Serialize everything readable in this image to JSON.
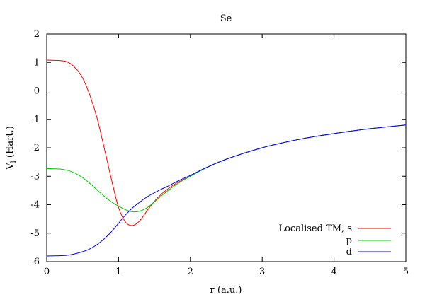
{
  "chart_data": {
    "type": "line",
    "title": "Se",
    "xlabel": "r (a.u.)",
    "ylabel_main": "V",
    "ylabel_sub": "l",
    "ylabel_rest": " (Hart.)",
    "xlim": [
      0,
      5
    ],
    "ylim": [
      -6,
      2
    ],
    "x_ticks": [
      0,
      1,
      2,
      3,
      4,
      5
    ],
    "y_ticks": [
      -6,
      -5,
      -4,
      -3,
      -2,
      -1,
      0,
      1,
      2
    ],
    "grid": false,
    "legend_position": "bottom-right",
    "series": [
      {
        "name": "Localised TM, s",
        "color": "#ff0000",
        "x": [
          0,
          0.2,
          0.3,
          0.4,
          0.5,
          0.6,
          0.7,
          0.8,
          0.9,
          1.0,
          1.1,
          1.2,
          1.3,
          1.4,
          1.5,
          1.6,
          1.7,
          1.8,
          1.9,
          2.0,
          2.2,
          2.5,
          3.0,
          3.5,
          4.0,
          4.5,
          5.0
        ],
        "y": [
          1.08,
          1.06,
          1.0,
          0.8,
          0.45,
          -0.15,
          -0.95,
          -2.0,
          -3.1,
          -4.1,
          -4.62,
          -4.73,
          -4.55,
          -4.2,
          -3.88,
          -3.62,
          -3.42,
          -3.25,
          -3.12,
          -3.0,
          -2.73,
          -2.4,
          -2.0,
          -1.71,
          -1.5,
          -1.33,
          -1.2
        ]
      },
      {
        "name": "p",
        "color": "#00cc00",
        "x": [
          0,
          0.2,
          0.3,
          0.4,
          0.5,
          0.6,
          0.7,
          0.8,
          0.9,
          1.0,
          1.1,
          1.2,
          1.3,
          1.4,
          1.5,
          1.6,
          1.7,
          1.8,
          1.9,
          2.0,
          2.2,
          2.5,
          3.0,
          3.5,
          4.0,
          4.5,
          5.0
        ],
        "y": [
          -2.73,
          -2.75,
          -2.8,
          -2.9,
          -3.05,
          -3.25,
          -3.48,
          -3.7,
          -3.9,
          -4.05,
          -4.18,
          -4.25,
          -4.22,
          -4.1,
          -3.9,
          -3.68,
          -3.48,
          -3.3,
          -3.14,
          -3.0,
          -2.73,
          -2.4,
          -2.0,
          -1.71,
          -1.5,
          -1.33,
          -1.2
        ]
      },
      {
        "name": "d",
        "color": "#0000ff",
        "x": [
          0,
          0.2,
          0.3,
          0.4,
          0.5,
          0.6,
          0.7,
          0.8,
          0.9,
          1.0,
          1.1,
          1.2,
          1.3,
          1.4,
          1.5,
          1.6,
          1.7,
          1.8,
          1.9,
          2.0,
          2.2,
          2.5,
          3.0,
          3.5,
          4.0,
          4.5,
          5.0
        ],
        "y": [
          -5.8,
          -5.79,
          -5.77,
          -5.72,
          -5.65,
          -5.55,
          -5.4,
          -5.2,
          -4.95,
          -4.65,
          -4.35,
          -4.1,
          -3.9,
          -3.72,
          -3.58,
          -3.45,
          -3.33,
          -3.2,
          -3.08,
          -2.97,
          -2.72,
          -2.4,
          -2.0,
          -1.71,
          -1.5,
          -1.33,
          -1.2
        ]
      }
    ]
  }
}
